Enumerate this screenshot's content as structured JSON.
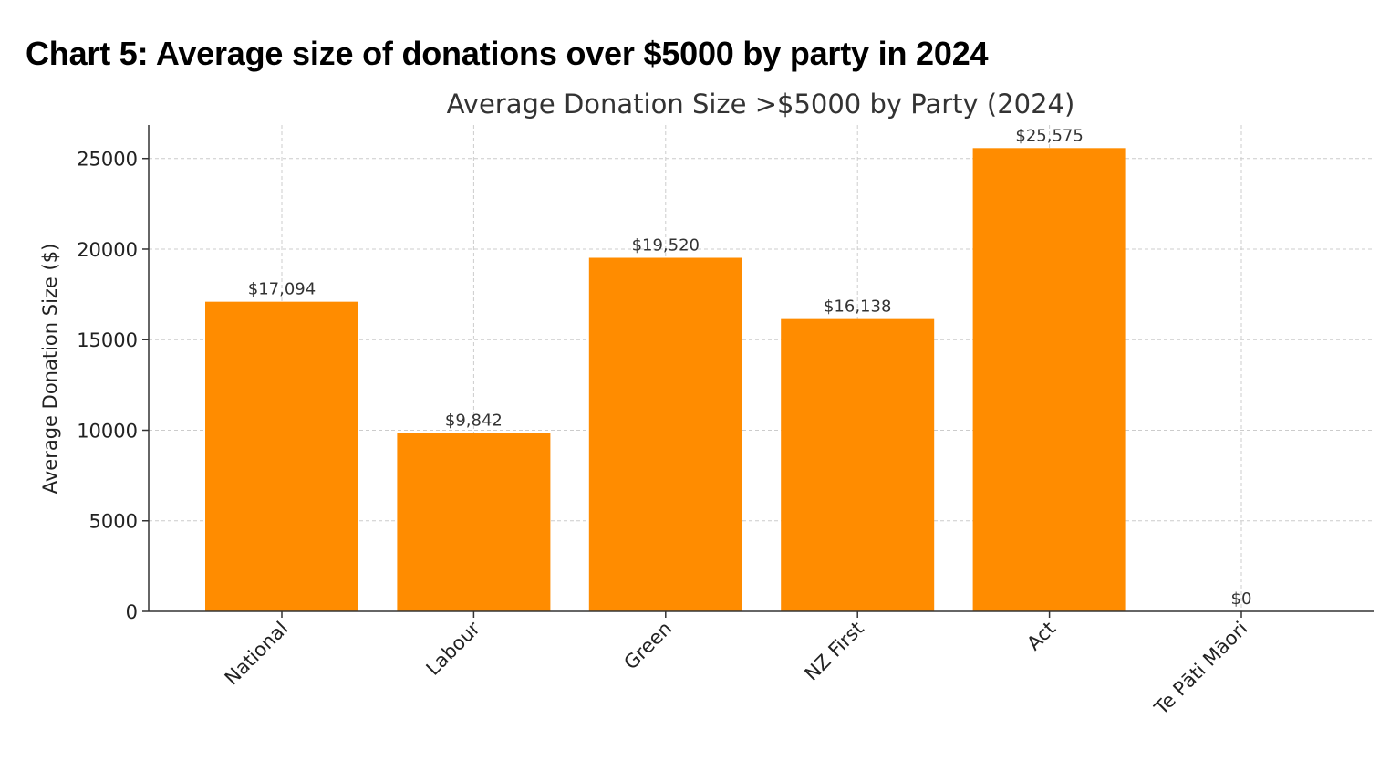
{
  "page": {
    "caption": "Chart 5: Average size of donations over $5000 by party in 2024"
  },
  "chart_data": {
    "type": "bar",
    "title": "Average Donation Size >$5000 by Party (2024)",
    "xlabel": "",
    "ylabel": "Average Donation Size ($)",
    "categories": [
      "National",
      "Labour",
      "Green",
      "NZ First",
      "Act",
      "Te Pāti Māori"
    ],
    "values": [
      17094,
      9842,
      19520,
      16138,
      25575,
      0
    ],
    "data_labels": [
      "$17,094",
      "$9,842",
      "$19,520",
      "$16,138",
      "$25,575",
      "$0"
    ],
    "yticks": [
      0,
      5000,
      10000,
      15000,
      20000,
      25000
    ],
    "ylim": [
      0,
      26850
    ],
    "grid": true,
    "bar_color": "#ff8c00",
    "grid_color": "#cccccc",
    "axis_color": "#333333"
  }
}
